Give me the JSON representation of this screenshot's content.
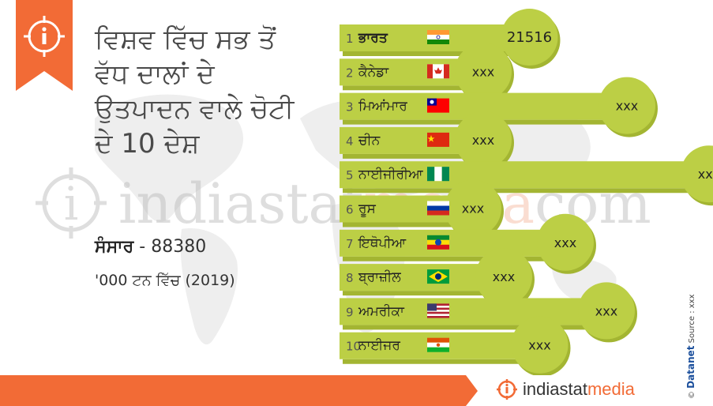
{
  "title": "ਵਿਸ਼ਵ ਵਿੱਚ ਸਭ ਤੋਂ ਵੱਧ ਦਾਲਾਂ ਦੇ ਉਤਪਾਦਨ ਵਾਲੇ ਚੋਟੀ ਦੇ 10 ਦੇਸ਼",
  "world": {
    "label": "ਸੰਸਾਰ",
    "separator": "-",
    "value": "88380"
  },
  "unit_note": "'000 ਟਨ ਵਿੱਚ (2019)",
  "watermark": {
    "part1": "indiastat",
    "part2": "media",
    "part3": "com"
  },
  "brand": {
    "part1": "indiastat",
    "part2": "media"
  },
  "credit": {
    "copyright": "©",
    "name": "Datanet",
    "source": "Source : xxx"
  },
  "colors": {
    "accent_orange": "#f26b36",
    "bar_green": "#bccf45",
    "circle_green": "#bccf45",
    "bar_shadow": "#a3b532",
    "map_gray": "#eeeeee"
  },
  "icons": {
    "info": "info-icon",
    "brand": "indiastat-logo-icon"
  },
  "chart_data": {
    "type": "bar",
    "categories": [
      "ਭਾਰਤ",
      "ਕੈਨੇਡਾ",
      "ਮਿਆਂਮਾਰ",
      "ਚੀਨ",
      "ਨਾਈਜੀਰੀਆ",
      "ਰੂਸ",
      "ਇਥੋਪੀਆ",
      "ਬ੍ਰਾਜ਼ੀਲ",
      "ਅਮਰੀਕਾ",
      "ਨਾਈਜਰ"
    ],
    "ranks": [
      "1",
      "2",
      "3",
      "4",
      "5",
      "6",
      "7",
      "8",
      "9",
      "10"
    ],
    "values": [
      "21516",
      "xxx",
      "xxx",
      "xxx",
      "xxx",
      "xxx",
      "xxx",
      "xxx",
      "xxx",
      "xxx"
    ],
    "flags": [
      "india",
      "canada",
      "myanmar",
      "china",
      "nigeria",
      "russia",
      "ethiopia",
      "brazil",
      "usa",
      "niger"
    ],
    "bar_length_rel": [
      0.82,
      0.64,
      1.2,
      0.64,
      1.52,
      0.6,
      0.96,
      0.72,
      1.12,
      0.86
    ]
  }
}
